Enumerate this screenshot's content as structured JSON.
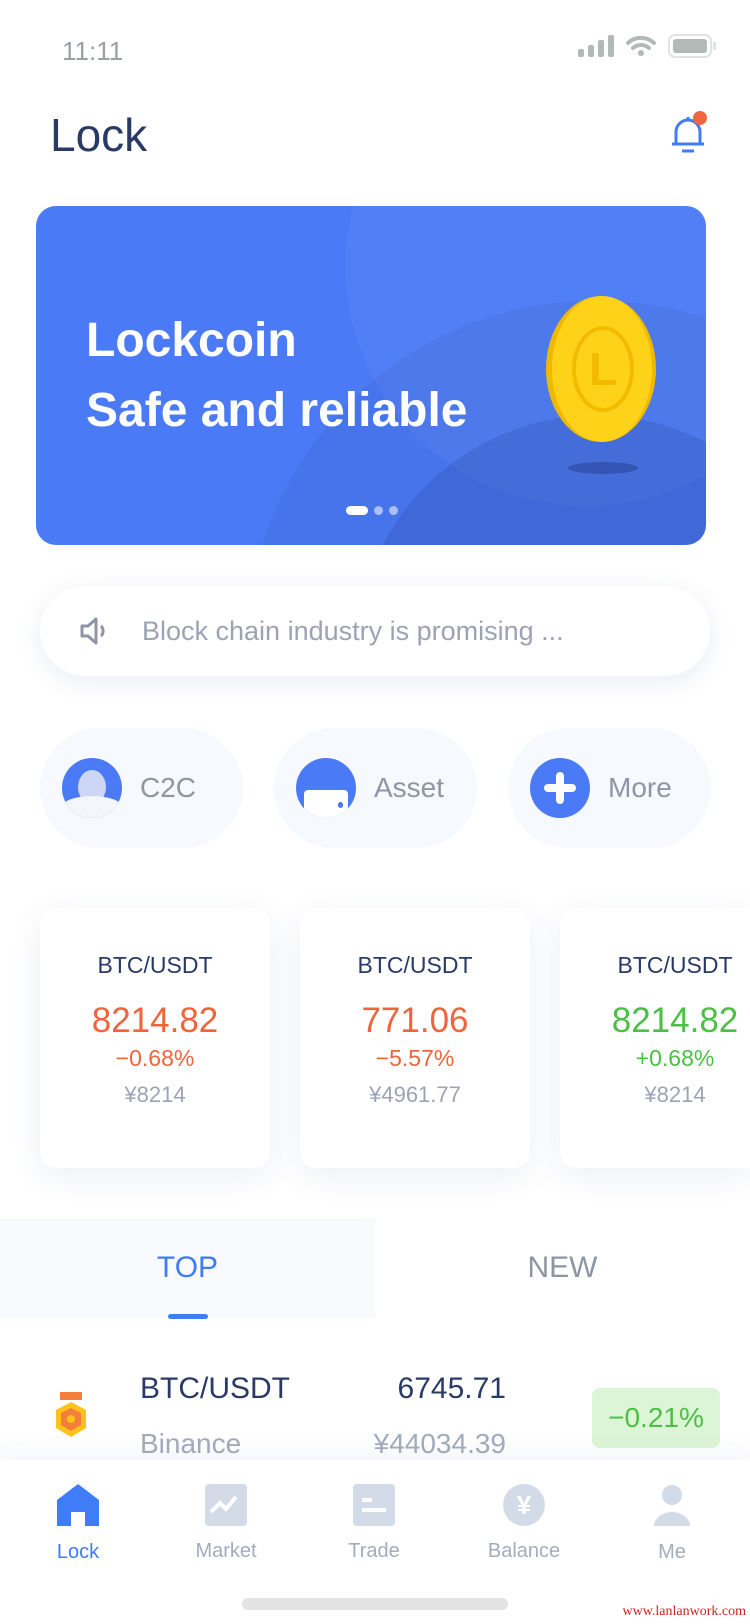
{
  "status_bar": {
    "time": "11:11"
  },
  "header": {
    "title": "Lock",
    "notification_badge": true
  },
  "banner": {
    "line1": "Lockcoin",
    "line2": "Safe and reliable",
    "coin_letter": "L",
    "slides": 3,
    "active_slide": 1
  },
  "notice": {
    "text": "Block chain industry is promising ..."
  },
  "shortcuts": [
    {
      "label": "C2C",
      "icon": "c2c-icon"
    },
    {
      "label": "Asset",
      "icon": "wallet-icon"
    },
    {
      "label": "More",
      "icon": "plus-icon"
    }
  ],
  "tickers": [
    {
      "pair": "BTC/USDT",
      "price": "8214.82",
      "change": "−0.68%",
      "cny": "¥8214",
      "color": "#f0643c"
    },
    {
      "pair": "BTC/USDT",
      "price": "771.06",
      "change": "−5.57%",
      "cny": "¥4961.77",
      "color": "#f0643c"
    },
    {
      "pair": "BTC/USDT",
      "price": "8214.82",
      "change": "+0.68%",
      "cny": "¥8214",
      "color": "#4cbf45"
    }
  ],
  "list_tabs": [
    {
      "label": "TOP",
      "active": true
    },
    {
      "label": "NEW",
      "active": false
    }
  ],
  "list": [
    {
      "pair": "BTC/USDT",
      "exchange": "Binance",
      "price": "6745.71",
      "cny": "¥44034.39",
      "change": "−0.21%"
    }
  ],
  "tabbar": [
    {
      "label": "Lock",
      "active": true
    },
    {
      "label": "Market"
    },
    {
      "label": "Trade"
    },
    {
      "label": "Balance"
    },
    {
      "label": "Me"
    }
  ],
  "colors": {
    "accent": "#4a7af5",
    "down": "#f0643c",
    "up": "#4cbf45"
  },
  "watermark": "www.lanlanwork.com"
}
